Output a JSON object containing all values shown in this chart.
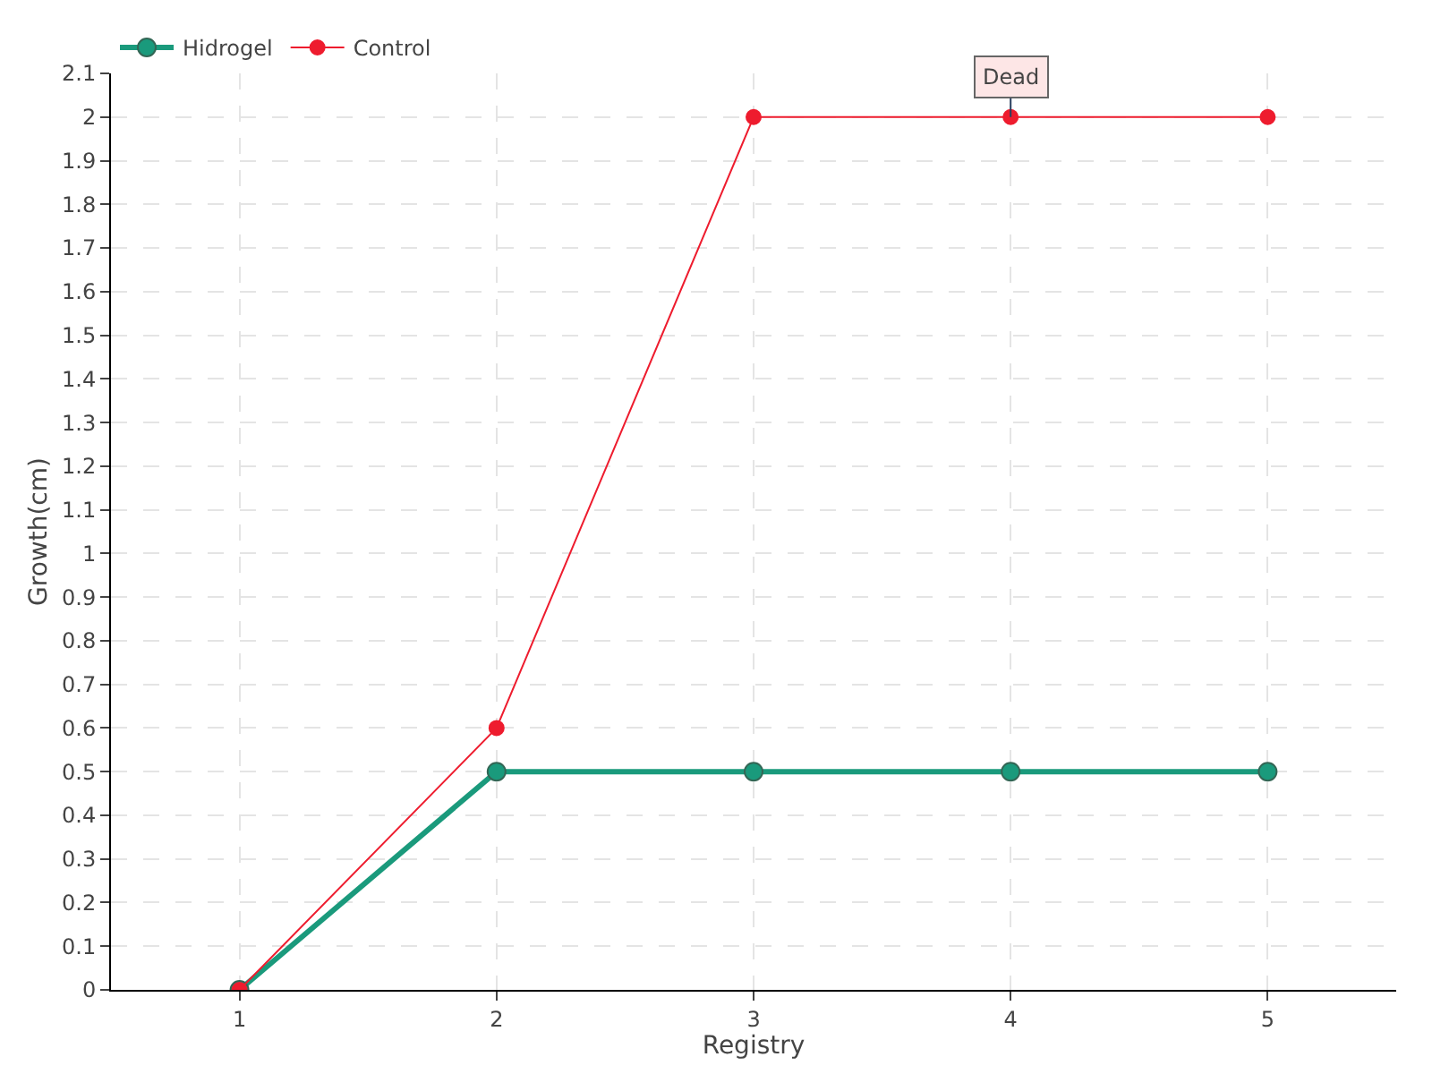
{
  "chart_data": {
    "type": "line",
    "xlabel": "Registry",
    "ylabel": "Growth(cm)",
    "x": [
      1,
      2,
      3,
      4,
      5
    ],
    "series": [
      {
        "name": "Hidrogel",
        "color": "#1a9a7c",
        "values": [
          0,
          0.5,
          0.5,
          0.5,
          0.5
        ]
      },
      {
        "name": "Control",
        "color": "#ee1c2e",
        "values": [
          0,
          0.6,
          2,
          2,
          2
        ]
      }
    ],
    "annotations": [
      {
        "text": "Dead",
        "x": 4,
        "y": 2
      }
    ],
    "xlim": [
      0.5,
      5.5
    ],
    "xticks": [
      1,
      2,
      3,
      4,
      5
    ],
    "ylim": [
      0,
      2.1
    ],
    "yticks": [
      0,
      0.1,
      0.2,
      0.3,
      0.4,
      0.5,
      0.6,
      0.7,
      0.8,
      0.9,
      1,
      1.1,
      1.2,
      1.3,
      1.4,
      1.5,
      1.6,
      1.7,
      1.8,
      1.9,
      2,
      2.1
    ],
    "grid": true,
    "legend": "top left",
    "marker": "circle"
  }
}
